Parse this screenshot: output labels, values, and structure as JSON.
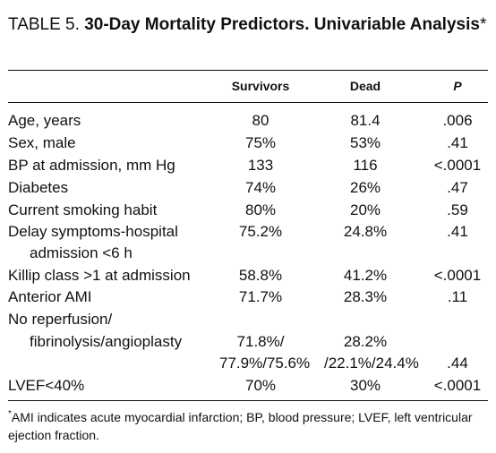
{
  "title": {
    "table_number": "TABLE 5.",
    "title_text": "30-Day Mortality Predictors. Univariable Analysis",
    "asterisk": "*"
  },
  "columns": {
    "survivors": "Survivors",
    "dead": "Dead",
    "p": "P"
  },
  "rows": [
    {
      "label": "Age, years",
      "survivors": "80",
      "dead": "81.4",
      "p": ".006"
    },
    {
      "label": "Sex, male",
      "survivors": "75%",
      "dead": "53%",
      "p": ".41"
    },
    {
      "label": "BP at admission, mm Hg",
      "survivors": "133",
      "dead": "116",
      "p": "<.0001"
    },
    {
      "label": "Diabetes",
      "survivors": "74%",
      "dead": "26%",
      "p": ".47"
    },
    {
      "label": "Current smoking habit",
      "survivors": "80%",
      "dead": "20%",
      "p": ".59"
    },
    {
      "label": "Delay symptoms-hospital",
      "label_cont": "admission <6 h",
      "survivors": "75.2%",
      "dead": "24.8%",
      "p": ".41"
    },
    {
      "label": "Killip class >1 at admission",
      "survivors": "58.8%",
      "dead": "41.2%",
      "p": "<.0001"
    },
    {
      "label": "Anterior AMI",
      "survivors": "71.7%",
      "dead": "28.3%",
      "p": ".11"
    },
    {
      "label": "No reperfusion/",
      "label_cont": "fibrinolysis/angioplasty",
      "survivors": "71.8%/",
      "survivors_cont": "77.9%/75.6%",
      "dead": "28.2%",
      "dead_cont": "/22.1%/24.4%",
      "p": ".44"
    },
    {
      "label": "LVEF<40%",
      "survivors": "70%",
      "dead": "30%",
      "p": "<.0001"
    }
  ],
  "footnote": {
    "marker": "*",
    "text": "AMI indicates acute myocardial infarction; BP, blood pressure; LVEF, left ventricular ejection fraction."
  }
}
